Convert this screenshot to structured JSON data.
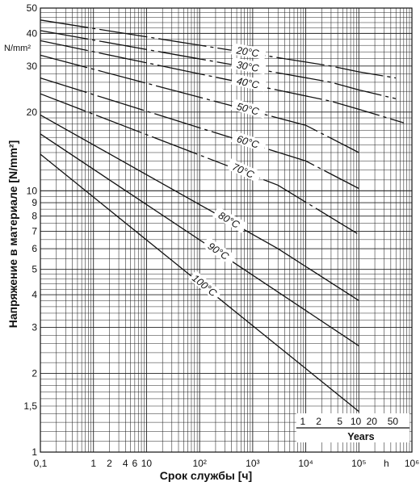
{
  "chart_data": {
    "type": "line",
    "xscale": "log",
    "yscale": "log",
    "xlim": [
      0.1,
      1000000
    ],
    "ylim": [
      1,
      50
    ],
    "grid": true,
    "xlabel": "Срок службы [ч]",
    "ylabel": "Напряжение в материале [N/mm²]",
    "yunit": "N/mm²",
    "xunit": "h",
    "x_ticks": [
      {
        "v": 0.1,
        "label": "0,1"
      },
      {
        "v": 1,
        "label": "1"
      },
      {
        "v": 2,
        "label": "2"
      },
      {
        "v": 4,
        "label": "4"
      },
      {
        "v": 6,
        "label": "6"
      },
      {
        "v": 10,
        "label": "10"
      },
      {
        "v": 100,
        "label": "10²"
      },
      {
        "v": 1000,
        "label": "10³"
      },
      {
        "v": 10000,
        "label": "10⁴"
      },
      {
        "v": 100000,
        "label": "10⁵"
      },
      {
        "v": 1000000,
        "label": "10⁶"
      }
    ],
    "y_ticks": [
      {
        "v": 1,
        "label": "1"
      },
      {
        "v": 1.5,
        "label": "1,5"
      },
      {
        "v": 2,
        "label": "2"
      },
      {
        "v": 3,
        "label": "3"
      },
      {
        "v": 4,
        "label": "4"
      },
      {
        "v": 5,
        "label": "5"
      },
      {
        "v": 6,
        "label": "6"
      },
      {
        "v": 7,
        "label": "7"
      },
      {
        "v": 8,
        "label": "8"
      },
      {
        "v": 9,
        "label": "9"
      },
      {
        "v": 10,
        "label": "10"
      },
      {
        "v": 20,
        "label": "20"
      },
      {
        "v": 30,
        "label": "30"
      },
      {
        "v": 40,
        "label": "40"
      },
      {
        "v": 50,
        "label": "50"
      }
    ],
    "years_scale": {
      "title": "Years",
      "ticks": [
        {
          "years": 1,
          "label": "1"
        },
        {
          "years": 2,
          "label": "2"
        },
        {
          "years": 5,
          "label": "5"
        },
        {
          "years": 10,
          "label": "10"
        },
        {
          "years": 20,
          "label": "20"
        },
        {
          "years": 50,
          "label": "50"
        }
      ]
    },
    "series": [
      {
        "name": "20°C",
        "x": [
          0.1,
          30000,
          100000,
          500000
        ],
        "y": [
          45,
          30,
          28.5,
          27
        ]
      },
      {
        "name": "30°C",
        "x": [
          0.1,
          30000,
          100000,
          500000
        ],
        "y": [
          41,
          26,
          24.3,
          22.5
        ]
      },
      {
        "name": "40°C",
        "x": [
          0.1,
          30000,
          100000,
          700000
        ],
        "y": [
          37.5,
          22,
          20.5,
          18.2
        ]
      },
      {
        "name": "50°C",
        "x": [
          0.1,
          10000,
          100000
        ],
        "y": [
          33,
          17.8,
          14
        ]
      },
      {
        "name": "60°C",
        "x": [
          0.1,
          10000,
          100000
        ],
        "y": [
          27,
          13,
          10.2
        ]
      },
      {
        "name": "70°C",
        "x": [
          0.1,
          3000,
          100000
        ],
        "y": [
          23.5,
          10.5,
          6.8
        ]
      },
      {
        "name": "80°C",
        "x": [
          0.1,
          3000,
          100000
        ],
        "y": [
          19.5,
          6,
          3.8
        ]
      },
      {
        "name": "90°C",
        "x": [
          0.1,
          100000
        ],
        "y": [
          16.5,
          2.55
        ]
      },
      {
        "name": "100°C",
        "x": [
          0.1,
          100000
        ],
        "y": [
          13.8,
          1.43
        ]
      }
    ],
    "label_positions_x": [
      800,
      800,
      800,
      800,
      800,
      650,
      350,
      220,
      120
    ]
  }
}
